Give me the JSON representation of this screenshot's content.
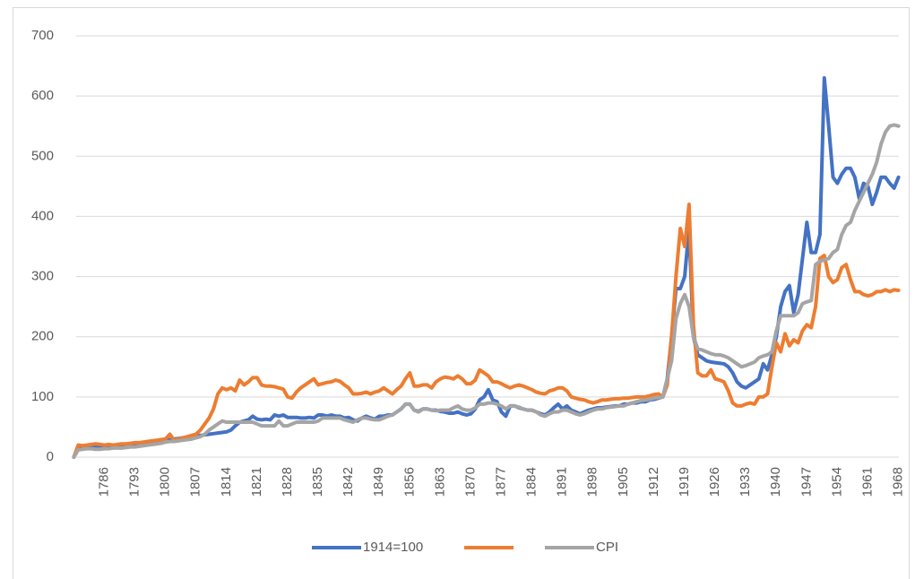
{
  "chart_data": {
    "type": "line",
    "categories": [
      null,
      null,
      null,
      null,
      null,
      null,
      null,
      "1786",
      null,
      null,
      null,
      null,
      null,
      null,
      "1793",
      null,
      null,
      null,
      null,
      null,
      null,
      "1800",
      null,
      null,
      null,
      null,
      null,
      null,
      "1807",
      null,
      null,
      null,
      null,
      null,
      null,
      "1814",
      null,
      null,
      null,
      null,
      null,
      null,
      "1821",
      null,
      null,
      null,
      null,
      null,
      null,
      "1828",
      null,
      null,
      null,
      null,
      null,
      null,
      "1835",
      null,
      null,
      null,
      null,
      null,
      null,
      "1842",
      null,
      null,
      null,
      null,
      null,
      null,
      "1849",
      null,
      null,
      null,
      null,
      null,
      null,
      "1856",
      null,
      null,
      null,
      null,
      null,
      null,
      "1863",
      null,
      null,
      null,
      null,
      null,
      null,
      "1870",
      null,
      null,
      null,
      null,
      null,
      null,
      "1877",
      null,
      null,
      null,
      null,
      null,
      null,
      "1884",
      null,
      null,
      null,
      null,
      null,
      null,
      "1891",
      null,
      null,
      null,
      null,
      null,
      null,
      "1898",
      null,
      null,
      null,
      null,
      null,
      null,
      "1905",
      null,
      null,
      null,
      null,
      null,
      null,
      "1912",
      null,
      null,
      null,
      null,
      null,
      null,
      "1919",
      null,
      null,
      null,
      null,
      null,
      null,
      "1926",
      null,
      null,
      null,
      null,
      null,
      null,
      "1933",
      null,
      null,
      null,
      null,
      null,
      null,
      "1940",
      null,
      null,
      null,
      null,
      null,
      null,
      "1947",
      null,
      null,
      null,
      null,
      null,
      null,
      "1954",
      null,
      null,
      null,
      null,
      null,
      null,
      "1961",
      null,
      null,
      null,
      null,
      null,
      null,
      "1968"
    ],
    "series": [
      {
        "name": "1914=100",
        "color": "#4472c4",
        "values": [
          0,
          18,
          16,
          17,
          18,
          17,
          16,
          17,
          18,
          17,
          18,
          19,
          20,
          21,
          22,
          22,
          23,
          24,
          25,
          26,
          27,
          28,
          29,
          30,
          31,
          32,
          33,
          34,
          35,
          36,
          37,
          38,
          39,
          40,
          41,
          42,
          45,
          52,
          58,
          60,
          62,
          68,
          63,
          62,
          63,
          62,
          70,
          68,
          70,
          66,
          66,
          66,
          65,
          65,
          66,
          65,
          70,
          70,
          68,
          70,
          68,
          68,
          65,
          66,
          62,
          60,
          65,
          68,
          65,
          63,
          68,
          68,
          70,
          70,
          75,
          80,
          88,
          88,
          78,
          76,
          80,
          80,
          78,
          78,
          76,
          75,
          73,
          73,
          75,
          72,
          70,
          72,
          80,
          95,
          100,
          112,
          95,
          92,
          75,
          68,
          85,
          85,
          82,
          80,
          78,
          78,
          75,
          72,
          70,
          75,
          82,
          88,
          80,
          85,
          78,
          75,
          72,
          75,
          78,
          80,
          82,
          82,
          83,
          84,
          85,
          85,
          88,
          88,
          90,
          90,
          92,
          92,
          95,
          96,
          98,
          100,
          130,
          200,
          280,
          280,
          300,
          380,
          200,
          170,
          165,
          160,
          158,
          157,
          156,
          155,
          150,
          140,
          125,
          118,
          115,
          120,
          125,
          130,
          155,
          145,
          170,
          200,
          250,
          275,
          285,
          240,
          270,
          330,
          390,
          340,
          340,
          370,
          630,
          550,
          465,
          455,
          470,
          480,
          480,
          465,
          430,
          455,
          450,
          420,
          440,
          465,
          465,
          455,
          447,
          465
        ]
      },
      {
        "color": "#ed7d31",
        "values": [
          0,
          20,
          19,
          20,
          21,
          22,
          21,
          20,
          21,
          20,
          21,
          22,
          22,
          23,
          24,
          24,
          25,
          26,
          27,
          28,
          29,
          30,
          38,
          28,
          30,
          32,
          34,
          36,
          38,
          45,
          55,
          65,
          80,
          105,
          115,
          112,
          115,
          110,
          128,
          120,
          125,
          132,
          132,
          120,
          118,
          118,
          117,
          115,
          113,
          100,
          98,
          108,
          115,
          120,
          125,
          130,
          120,
          122,
          124,
          125,
          128,
          126,
          120,
          115,
          105,
          105,
          106,
          108,
          105,
          108,
          110,
          115,
          110,
          105,
          112,
          118,
          130,
          140,
          118,
          118,
          120,
          120,
          115,
          125,
          130,
          133,
          132,
          130,
          135,
          130,
          122,
          122,
          128,
          145,
          140,
          135,
          125,
          125,
          122,
          118,
          115,
          118,
          120,
          118,
          115,
          112,
          108,
          106,
          105,
          110,
          112,
          115,
          115,
          110,
          100,
          98,
          96,
          95,
          92,
          90,
          92,
          95,
          95,
          96,
          97,
          97,
          98,
          98,
          99,
          100,
          100,
          100,
          102,
          104,
          105,
          100,
          120,
          200,
          300,
          380,
          350,
          420,
          220,
          140,
          135,
          135,
          145,
          130,
          128,
          125,
          110,
          90,
          85,
          85,
          88,
          90,
          88,
          100,
          100,
          105,
          150,
          190,
          175,
          205,
          185,
          195,
          190,
          210,
          220,
          215,
          250,
          330,
          335,
          300,
          290,
          295,
          315,
          320,
          295,
          275,
          275,
          270,
          268,
          270,
          275,
          275,
          278,
          275,
          278,
          277
        ]
      },
      {
        "name": "CPI",
        "color": "#a5a5a5",
        "values": [
          0,
          12,
          13,
          14,
          14,
          13,
          13,
          14,
          14,
          15,
          15,
          15,
          16,
          17,
          17,
          18,
          19,
          20,
          21,
          22,
          23,
          25,
          26,
          26,
          27,
          28,
          29,
          30,
          32,
          34,
          38,
          45,
          50,
          55,
          60,
          58,
          58,
          58,
          58,
          58,
          58,
          58,
          55,
          52,
          52,
          52,
          52,
          60,
          52,
          52,
          55,
          58,
          58,
          58,
          58,
          58,
          60,
          65,
          65,
          65,
          65,
          65,
          62,
          60,
          58,
          62,
          65,
          65,
          63,
          62,
          62,
          65,
          68,
          70,
          75,
          80,
          88,
          88,
          78,
          75,
          80,
          80,
          78,
          77,
          78,
          78,
          78,
          82,
          85,
          80,
          78,
          78,
          82,
          88,
          88,
          90,
          90,
          88,
          85,
          80,
          85,
          85,
          83,
          80,
          78,
          78,
          75,
          70,
          68,
          72,
          75,
          75,
          78,
          78,
          75,
          72,
          70,
          72,
          75,
          78,
          80,
          80,
          82,
          83,
          84,
          85,
          85,
          88,
          90,
          92,
          94,
          95,
          96,
          98,
          99,
          100,
          130,
          160,
          230,
          255,
          270,
          250,
          200,
          180,
          178,
          175,
          172,
          170,
          170,
          168,
          165,
          160,
          155,
          150,
          152,
          155,
          158,
          165,
          168,
          170,
          175,
          210,
          235,
          235,
          235,
          235,
          240,
          255,
          258,
          260,
          320,
          325,
          328,
          330,
          340,
          345,
          370,
          385,
          390,
          410,
          425,
          440,
          455,
          470,
          490,
          520,
          540,
          550,
          552,
          550
        ]
      }
    ],
    "ylim": [
      0,
      700
    ],
    "yticks": [
      0,
      100,
      200,
      300,
      400,
      500,
      600,
      700
    ],
    "grid": true,
    "legend": "bottom"
  }
}
